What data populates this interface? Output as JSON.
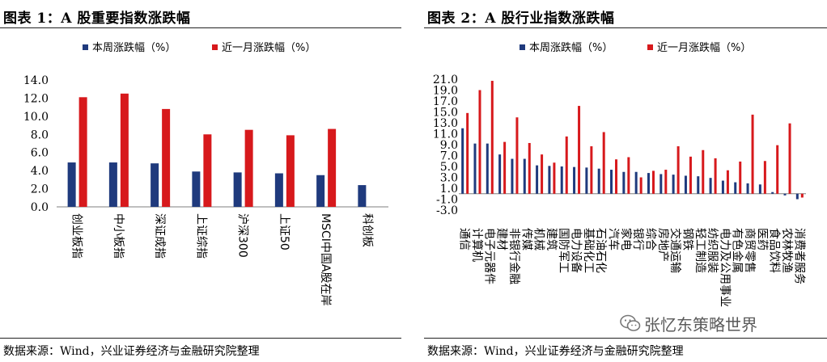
{
  "colors": {
    "series1": "#1f3a7d",
    "series2": "#d7191c",
    "axis": "#7f7f7f"
  },
  "watermark": {
    "icon": "wechat-icon",
    "text": "张忆东策略世界"
  },
  "figures": [
    {
      "title": "图表 1：A 股重要指数涨跌幅",
      "source": "数据来源：Wind，兴业证券经济与金融研究院整理"
    },
    {
      "title": "图表 2：A 股行业指数涨跌幅",
      "source": "数据来源：Wind，兴业证券经济与金融研究院整理"
    }
  ],
  "chart_data": [
    {
      "type": "bar",
      "title": "",
      "legend": "top",
      "grid": false,
      "ylim": [
        0,
        14
      ],
      "yticks": [
        "0.0",
        "2.0",
        "4.0",
        "6.0",
        "8.0",
        "10.0",
        "12.0",
        "14.0"
      ],
      "categories": [
        "创业板指",
        "中小板指",
        "深证成指",
        "上证综指",
        "沪深300",
        "上证50",
        "MSCI中国A股在岸",
        "科创板"
      ],
      "series": [
        {
          "name": "本周涨跌幅（%）",
          "values": [
            4.9,
            4.9,
            4.8,
            3.9,
            3.8,
            3.7,
            3.5,
            2.4
          ]
        },
        {
          "name": "近一月涨跌幅（%）",
          "values": [
            12.1,
            12.5,
            10.8,
            8.0,
            8.5,
            7.9,
            8.6,
            null
          ]
        }
      ]
    },
    {
      "type": "bar",
      "title": "",
      "legend": "top",
      "grid": false,
      "ylim": [
        -3,
        21
      ],
      "yticks": [
        "-3.0",
        "-1.0",
        "1.0",
        "3.0",
        "5.0",
        "7.0",
        "9.0",
        "11.0",
        "13.0",
        "15.0",
        "17.0",
        "19.0",
        "21.0"
      ],
      "categories": [
        "通信",
        "计算机",
        "电子元器件",
        "建材",
        "非银行金融",
        "传媒",
        "机械",
        "建筑",
        "国防军工",
        "电力设备",
        "基础化工",
        "石油石化",
        "汽车",
        "家电",
        "银行",
        "综合",
        "房地产",
        "交通运输",
        "钢铁",
        "轻工制造",
        "纺织服装",
        "电力及公用事业",
        "有色金属",
        "商贸零售",
        "医药",
        "食品饮料",
        "农林牧渔",
        "消费者服务"
      ],
      "series": [
        {
          "name": "本周涨跌幅（%）",
          "values": [
            12.0,
            9.2,
            9.2,
            7.2,
            6.4,
            6.4,
            5.2,
            5.1,
            5.0,
            4.9,
            4.8,
            4.6,
            4.4,
            4.0,
            4.0,
            3.8,
            3.6,
            3.5,
            3.3,
            3.2,
            2.9,
            2.4,
            2.1,
            1.9,
            1.7,
            0.3,
            -0.3,
            -1.0
          ]
        },
        {
          "name": "近一月涨跌幅（%）",
          "values": [
            14.8,
            19.0,
            20.7,
            9.5,
            14.0,
            9.3,
            7.2,
            5.7,
            10.5,
            16.1,
            8.7,
            11.3,
            6.3,
            6.7,
            3.0,
            4.2,
            4.4,
            8.7,
            6.8,
            8.0,
            6.5,
            4.3,
            5.9,
            14.5,
            6.0,
            8.9,
            12.9,
            -0.7
          ]
        }
      ]
    }
  ]
}
